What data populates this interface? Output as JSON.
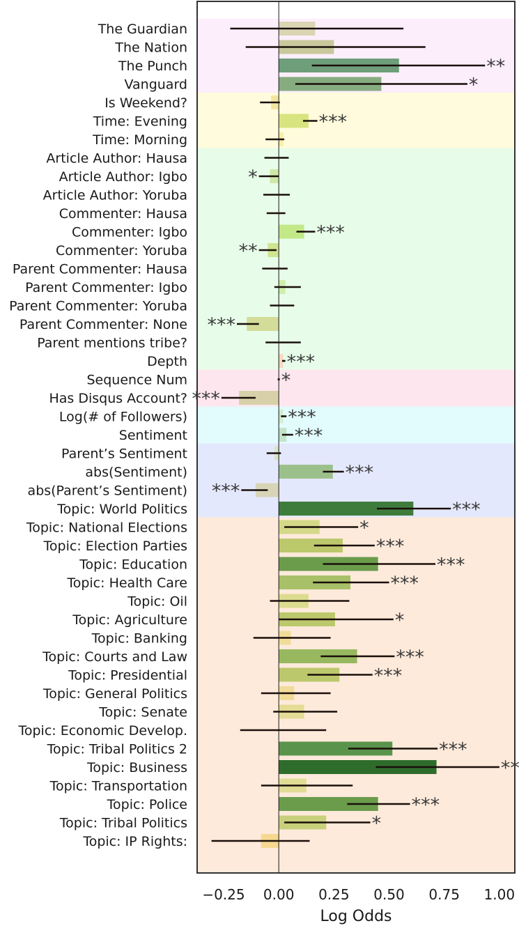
{
  "chart_data": {
    "type": "bar",
    "orientation": "horizontal",
    "xlabel": "Log Odds",
    "xlim": [
      -0.37,
      1.07
    ],
    "xticks": [
      -0.25,
      0.0,
      0.25,
      0.5,
      0.75,
      1.0
    ],
    "xtick_labels": [
      "−0.25",
      "0.00",
      "0.25",
      "0.50",
      "0.75",
      "1.00"
    ],
    "zero_line": 0,
    "grid": false,
    "groups": [
      {
        "start": 0,
        "end": 3,
        "color": "#fdeefc"
      },
      {
        "start": 4,
        "end": 6,
        "color": "#fffbdc"
      },
      {
        "start": 7,
        "end": 18,
        "color": "#e7fde9"
      },
      {
        "start": 19,
        "end": 20,
        "color": "#fde6ee"
      },
      {
        "start": 21,
        "end": 22,
        "color": "#e2fbfd"
      },
      {
        "start": 23,
        "end": 26,
        "color": "#e4e8fc"
      },
      {
        "start": 27,
        "end": 45,
        "color": "#feeadb"
      }
    ],
    "rows": [
      {
        "label": "The Guardian",
        "value": 0.165,
        "ci": [
          -0.22,
          0.565
        ],
        "sig": "",
        "color": "#dbd5b4"
      },
      {
        "label": "The Nation",
        "value": 0.25,
        "ci": [
          -0.15,
          0.665
        ],
        "sig": "",
        "color": "#c8c89c"
      },
      {
        "label": "The Punch",
        "value": 0.545,
        "ci": [
          0.15,
          0.935
        ],
        "sig": "**",
        "color": "#6e9e7a"
      },
      {
        "label": "Vanguard",
        "value": 0.465,
        "ci": [
          0.075,
          0.855
        ],
        "sig": "*",
        "color": "#86ac80"
      },
      {
        "label": "Is Weekend?",
        "value": -0.035,
        "ci": [
          -0.085,
          0.005
        ],
        "sig": "",
        "color": "#f4e6a0"
      },
      {
        "label": "Time: Evening",
        "value": 0.135,
        "ci": [
          0.11,
          0.175
        ],
        "sig": "***",
        "color": "#d8e480"
      },
      {
        "label": "Time: Morning",
        "value": 0.02,
        "ci": [
          -0.06,
          0.025
        ],
        "sig": "",
        "color": "#f7eea8"
      },
      {
        "label": "Article Author: Hausa",
        "value": 0.0,
        "ci": [
          -0.065,
          0.045
        ],
        "sig": "",
        "color": "#cfe8b0"
      },
      {
        "label": "Article Author: Igbo",
        "value": -0.04,
        "ci": [
          -0.09,
          0.0
        ],
        "sig": "*",
        "color": "#cfe8a8"
      },
      {
        "label": "Article Author: Yoruba",
        "value": 0.0,
        "ci": [
          -0.07,
          0.05
        ],
        "sig": "",
        "color": "#cfe8b0"
      },
      {
        "label": "Commenter: Hausa",
        "value": 0.0,
        "ci": [
          -0.055,
          0.03
        ],
        "sig": "",
        "color": "#cfe8b0"
      },
      {
        "label": "Commenter: Igbo",
        "value": 0.115,
        "ci": [
          0.08,
          0.165
        ],
        "sig": "***",
        "color": "#c2e888"
      },
      {
        "label": "Commenter: Yoruba",
        "value": -0.05,
        "ci": [
          -0.09,
          -0.01
        ],
        "sig": "**",
        "color": "#d0e590"
      },
      {
        "label": "Parent Commenter: Hausa",
        "value": 0.0,
        "ci": [
          -0.075,
          0.04
        ],
        "sig": "",
        "color": "#cfe8b0"
      },
      {
        "label": "Parent Commenter: Igbo",
        "value": 0.03,
        "ci": [
          -0.02,
          0.1
        ],
        "sig": "",
        "color": "#cfeea8"
      },
      {
        "label": "Parent Commenter: Yoruba",
        "value": 0.0,
        "ci": [
          -0.04,
          0.07
        ],
        "sig": "",
        "color": "#cfe8b0"
      },
      {
        "label": "Parent Commenter: None",
        "value": -0.145,
        "ci": [
          -0.19,
          -0.09
        ],
        "sig": "***",
        "color": "#d3dc98"
      },
      {
        "label": "Parent mentions tribe?",
        "value": 0.0,
        "ci": [
          -0.06,
          0.1
        ],
        "sig": "",
        "color": "#cfe8b0"
      },
      {
        "label": "Depth",
        "value": 0.02,
        "ci": [
          0.015,
          0.03
        ],
        "sig": "***",
        "color": "#f9d8c0"
      },
      {
        "label": "Sequence Num",
        "value": 0.0,
        "ci": [
          -0.005,
          0.005
        ],
        "sig": "*",
        "color": "#f0c8cc"
      },
      {
        "label": "Has Disqus Account?",
        "value": -0.18,
        "ci": [
          -0.26,
          -0.105
        ],
        "sig": "***",
        "color": "#d8d0a8"
      },
      {
        "label": "Log(# of Followers)",
        "value": 0.02,
        "ci": [
          0.01,
          0.035
        ],
        "sig": "***",
        "color": "#d4ecd0"
      },
      {
        "label": "Sentiment",
        "value": 0.035,
        "ci": [
          0.015,
          0.065
        ],
        "sig": "***",
        "color": "#c4e4c8"
      },
      {
        "label": "Parent’s Sentiment",
        "value": -0.02,
        "ci": [
          -0.055,
          0.01
        ],
        "sig": "",
        "color": "#d8e4c8"
      },
      {
        "label": "abs(Sentiment)",
        "value": 0.245,
        "ci": [
          0.2,
          0.295
        ],
        "sig": "***",
        "color": "#9cc08c"
      },
      {
        "label": "abs(Parent’s Sentiment)",
        "value": -0.105,
        "ci": [
          -0.17,
          -0.05
        ],
        "sig": "***",
        "color": "#d8d4b8"
      },
      {
        "label": "Topic: World Politics",
        "value": 0.61,
        "ci": [
          0.445,
          0.78
        ],
        "sig": "***",
        "color": "#3e7c3c"
      },
      {
        "label": "Topic: National Elections",
        "value": 0.185,
        "ci": [
          0.025,
          0.36
        ],
        "sig": "*",
        "color": "#d4d888"
      },
      {
        "label": "Topic: Election Parties",
        "value": 0.29,
        "ci": [
          0.16,
          0.435
        ],
        "sig": "***",
        "color": "#bcc86c"
      },
      {
        "label": "Topic: Education",
        "value": 0.45,
        "ci": [
          0.2,
          0.71
        ],
        "sig": "***",
        "color": "#6a9c4c"
      },
      {
        "label": "Topic: Health Care",
        "value": 0.325,
        "ci": [
          0.155,
          0.5
        ],
        "sig": "***",
        "color": "#a8c068"
      },
      {
        "label": "Topic: Oil",
        "value": 0.135,
        "ci": [
          -0.04,
          0.32
        ],
        "sig": "",
        "color": "#dcdc90"
      },
      {
        "label": "Topic: Agriculture",
        "value": 0.255,
        "ci": [
          0.0,
          0.52
        ],
        "sig": "*",
        "color": "#bcc86c"
      },
      {
        "label": "Topic: Banking",
        "value": 0.055,
        "ci": [
          -0.115,
          0.235
        ],
        "sig": "",
        "color": "#f0dc98"
      },
      {
        "label": "Topic: Courts and Law",
        "value": 0.355,
        "ci": [
          0.19,
          0.525
        ],
        "sig": "***",
        "color": "#98b860"
      },
      {
        "label": "Topic: Presidential",
        "value": 0.275,
        "ci": [
          0.13,
          0.425
        ],
        "sig": "***",
        "color": "#bcc86c"
      },
      {
        "label": "Topic: General Politics",
        "value": 0.07,
        "ci": [
          -0.08,
          0.235
        ],
        "sig": "",
        "color": "#f0dc98"
      },
      {
        "label": "Topic: Senate",
        "value": 0.115,
        "ci": [
          -0.025,
          0.265
        ],
        "sig": "",
        "color": "#e4dc94"
      },
      {
        "label": "Topic: Economic Develop.",
        "value": 0.0,
        "ci": [
          -0.175,
          0.215
        ],
        "sig": "",
        "color": "#f0dc98"
      },
      {
        "label": "Topic: Tribal Politics 2",
        "value": 0.515,
        "ci": [
          0.315,
          0.72
        ],
        "sig": "***",
        "color": "#5a944c"
      },
      {
        "label": "Topic: Business",
        "value": 0.715,
        "ci": [
          0.44,
          1.0
        ],
        "sig": "***",
        "color": "#2e6c2c"
      },
      {
        "label": "Topic: Transportation",
        "value": 0.125,
        "ci": [
          -0.08,
          0.335
        ],
        "sig": "",
        "color": "#e0dc94"
      },
      {
        "label": "Topic: Police",
        "value": 0.45,
        "ci": [
          0.31,
          0.595
        ],
        "sig": "***",
        "color": "#6a9c4c"
      },
      {
        "label": "Topic: Tribal Politics",
        "value": 0.215,
        "ci": [
          0.025,
          0.415
        ],
        "sig": "*",
        "color": "#c8d07c"
      },
      {
        "label": "Topic: IP Rights:",
        "value": -0.08,
        "ci": [
          -0.305,
          0.14
        ],
        "sig": "",
        "color": "#f7d890"
      }
    ]
  }
}
